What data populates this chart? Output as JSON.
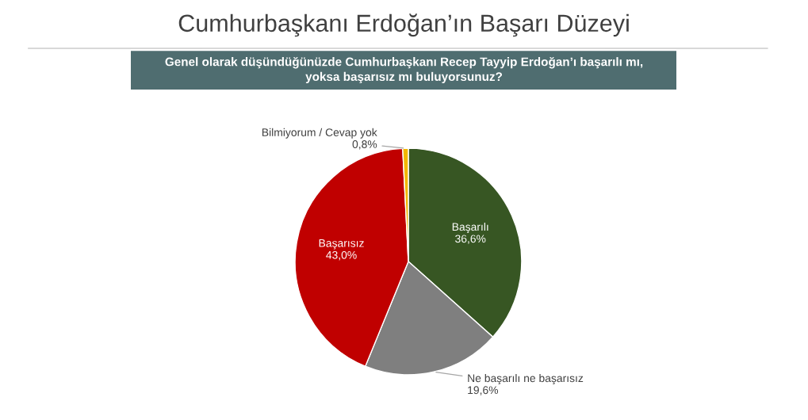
{
  "chart_data": {
    "type": "pie",
    "title": "Cumhurbaşkanı Erdoğan’ın Başarı Düzeyi",
    "subtitle": "Genel olarak düşündüğünüzde Cumhurbaşkanı Recep Tayyip Erdoğan’ı başarılı mı, yoksa başarısız mı buluyorsunuz?",
    "categories": [
      "Başarılı",
      "Ne başarılı ne başarısız",
      "Başarısız",
      "Bilmiyorum / Cevap yok"
    ],
    "values": [
      36.6,
      19.6,
      43.0,
      0.8
    ],
    "colors": [
      "#375623",
      "#7f7f7f",
      "#c00000",
      "#f2b700"
    ],
    "value_labels": [
      "36,6%",
      "19,6%",
      "43,0%",
      "0,8%"
    ],
    "legend": false
  }
}
